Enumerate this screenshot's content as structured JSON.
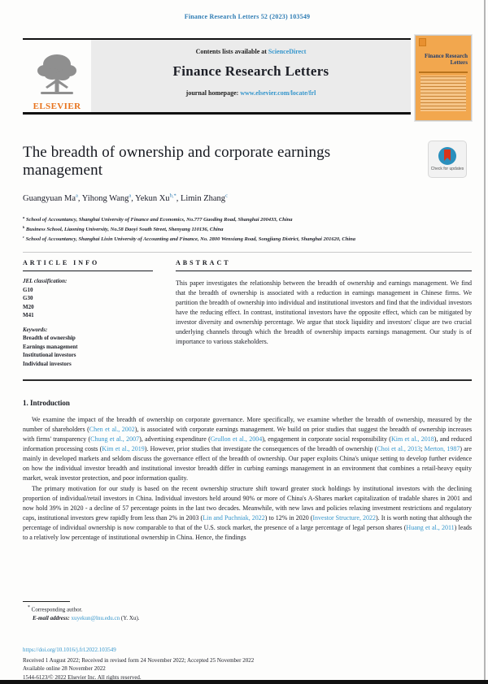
{
  "journal_ref": "Finance Research Letters 52 (2023) 103549",
  "header": {
    "contents_prefix": "Contents lists available at ",
    "sciencedirect": "ScienceDirect",
    "journal_name": "Finance Research Letters",
    "homepage_prefix": "journal homepage: ",
    "homepage_url": "www.elsevier.com/locate/frl",
    "elsevier_wordmark": "ELSEVIER",
    "cover_title": "Finance Research Letters"
  },
  "badge": {
    "label": "Check for updates"
  },
  "article": {
    "title": "The breadth of ownership and corporate earnings management",
    "authors": [
      {
        "name": "Guangyuan Ma",
        "sup": "a"
      },
      {
        "name": "Yihong Wang",
        "sup": "a"
      },
      {
        "name": "Yekun Xu",
        "sup": "b,*"
      },
      {
        "name": "Limin Zhang",
        "sup": "c"
      }
    ],
    "affiliations": [
      {
        "sup": "a",
        "text": " School of Accountancy, Shanghai University of Finance and Economics, No.777 Guoding Road, Shanghai 200433, China"
      },
      {
        "sup": "b",
        "text": " Business School, Liaoning University, No.58 Daoyi South Street, Shenyang 110136, China"
      },
      {
        "sup": "c",
        "text": " School of Accountancy, Shanghai Lixin University of Accounting and Finance, No. 2800 Wenxiang Road, Songjiang District, Shanghai 201620, China"
      }
    ]
  },
  "info": {
    "heading": "ARTICLE INFO",
    "jel_label": "JEL classification:",
    "jel_codes": [
      "G10",
      "G30",
      "M20",
      "M41"
    ],
    "keywords_label": "Keywords:",
    "keywords": [
      "Breadth of ownership",
      "Earnings management",
      "Institutional investors",
      "Individual investors"
    ]
  },
  "abstract": {
    "heading": "ABSTRACT",
    "text": "This paper investigates the relationship between the breadth of ownership and earnings management. We find that the breadth of ownership is associated with a reduction in earnings management in Chinese firms. We partition the breadth of ownership into individual and institutional investors and find that the individual investors have the reducing effect. In contrast, institutional investors have the opposite effect, which can be mitigated by investor diversity and ownership percentage. We argue that stock liquidity and investors' clique are two crucial underlying channels through which the breadth of ownership impacts earnings management. Our study is of importance to various stakeholders."
  },
  "intro": {
    "heading": "1. Introduction",
    "paragraphs": [
      [
        {
          "text": "We examine the impact of the breadth of ownership on corporate governance. More specifically, we examine whether the breadth of ownership, measured by the number of shareholders ("
        },
        {
          "text": "Chen et al., 2002",
          "link": true
        },
        {
          "text": "), is associated with corporate earnings management. We build on prior studies that suggest the breadth of ownership increases with firms' transparency ("
        },
        {
          "text": "Chung et al., 2007",
          "link": true
        },
        {
          "text": "), advertising expenditure ("
        },
        {
          "text": "Grullon et al., 2004",
          "link": true
        },
        {
          "text": "), engagement in corporate social responsibility ("
        },
        {
          "text": "Kim et al., 2018",
          "link": true
        },
        {
          "text": "), and reduced information processing costs ("
        },
        {
          "text": "Kim et al., 2019",
          "link": true
        },
        {
          "text": "). However, prior studies that investigate the consequences of the breadth of ownership ("
        },
        {
          "text": "Choi et al., 2013",
          "link": true
        },
        {
          "text": "; "
        },
        {
          "text": "Merton, 1987",
          "link": true
        },
        {
          "text": ") are mainly in developed markets and seldom discuss the governance effect of the breadth of ownership. Our paper exploits China's unique setting to develop further evidence on how the individual investor breadth and institutional investor breadth differ in curbing earnings management in an environment that combines a retail-heavy equity market, weak investor protection, and poor information quality."
        }
      ],
      [
        {
          "text": "The primary motivation for our study is based on the recent ownership structure shift toward greater stock holdings by institutional investors with the declining proportion of individual/retail investors in China. Individual investors held around 90% or more of China's A-Shares market capitalization of tradable shares in 2001 and now hold 39% in 2020 - a decline of 57 percentage points in the last two decades. Meanwhile, with new laws and policies relaxing investment restrictions and regulatory caps, institutional investors grew rapidly from less than 2% in 2003 ("
        },
        {
          "text": "Lin and Puchniak, 2022",
          "link": true
        },
        {
          "text": ") to 12% in 2020 ("
        },
        {
          "text": "Investor Structure, 2022",
          "link": true
        },
        {
          "text": "). It is worth noting that although the percentage of individual ownership is now comparable to that of the U.S. stock market, the presence of a large percentage of legal person shares ("
        },
        {
          "text": "Huang et al., 2011",
          "link": true
        },
        {
          "text": ") leads to a relatively low percentage of institutional ownership in China. Hence, the findings"
        }
      ]
    ]
  },
  "footnote": {
    "marker": "*",
    "corresponding": " Corresponding author.",
    "email_label": "E-mail address:",
    "email": " xuyekun@lnu.edu.cn",
    "email_suffix": " (Y. Xu)."
  },
  "bottom": {
    "doi": "https://doi.org/10.1016/j.frl.2022.103549",
    "received": "Received 1 August 2022; Received in revised form 24 November 2022; Accepted 25 November 2022",
    "online": "Available online 28 November 2022",
    "copyright": "1544-6123/© 2022 Elsevier Inc. All rights reserved."
  },
  "colors": {
    "link_blue": "#3596cc",
    "journal_ref_blue": "#2e7cb4",
    "elsevier_orange": "#e8731c",
    "cover_orange": "#f2a74e",
    "band_grey": "#ebebeb",
    "badge_red": "#d9341c",
    "badge_teal": "#2a8fbd"
  }
}
